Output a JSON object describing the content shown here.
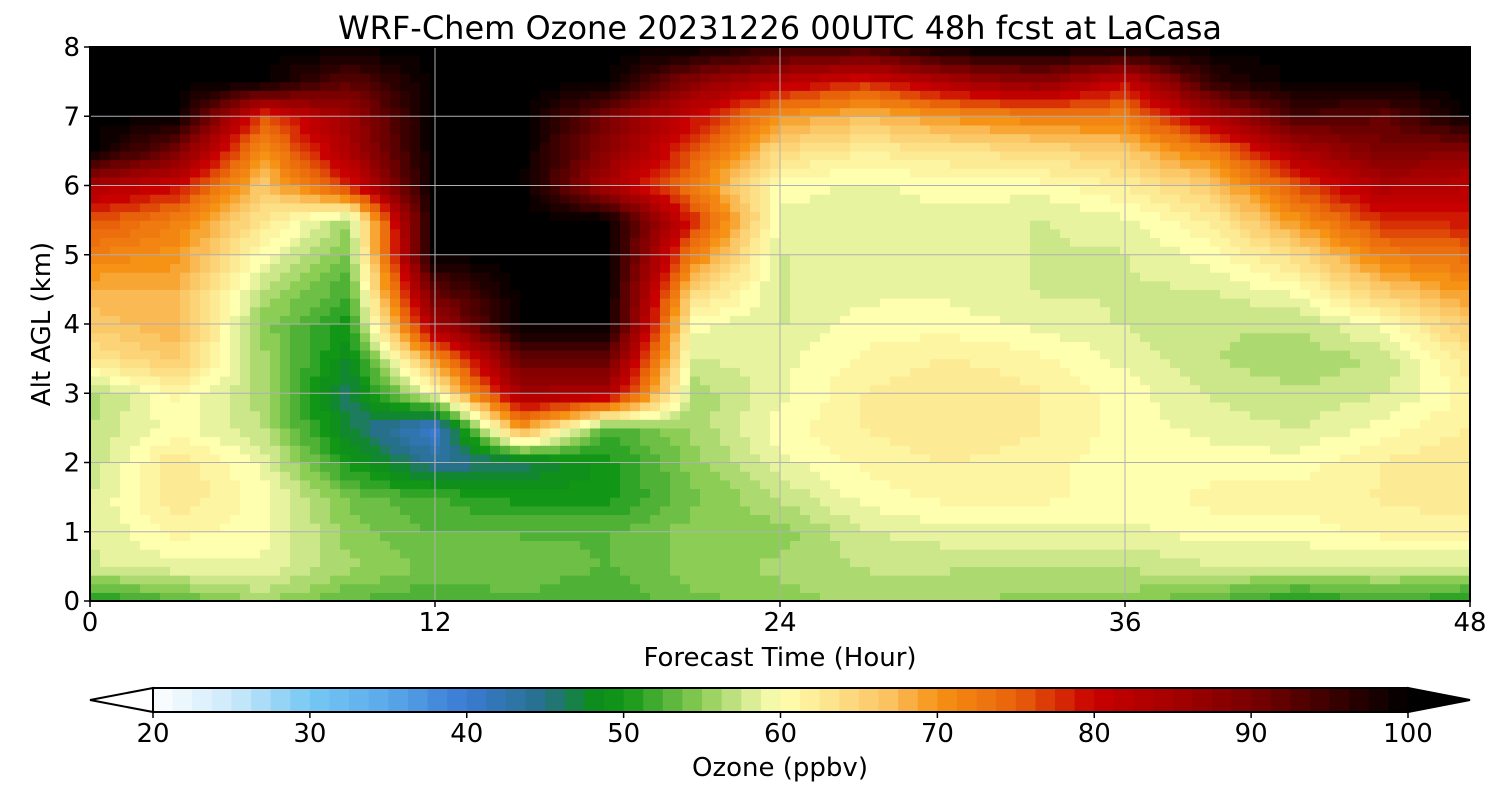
{
  "chart_data": {
    "type": "heatmap",
    "title": "WRF-Chem Ozone  20231226 00UTC 48h fcst at LaCasa",
    "xlabel": "Forecast Time (Hour)",
    "ylabel": "Alt AGL (km)",
    "xlim": [
      0,
      48
    ],
    "ylim": [
      0,
      8
    ],
    "xticks": [
      0,
      12,
      24,
      36,
      48
    ],
    "yticks": [
      0,
      1,
      2,
      3,
      4,
      5,
      6,
      7,
      8
    ],
    "grid": true,
    "x": [
      0,
      3,
      6,
      9,
      12,
      15,
      18,
      21,
      24,
      27,
      30,
      33,
      36,
      39,
      42,
      45,
      48
    ],
    "y": [
      0,
      0.5,
      1,
      1.5,
      2,
      2.5,
      3,
      3.5,
      4,
      4.5,
      5,
      5.5,
      6,
      6.5,
      7,
      7.5,
      8
    ],
    "values": [
      [
        50,
        53,
        56,
        53,
        52,
        53,
        52,
        54,
        55,
        56,
        56,
        55,
        55,
        53,
        50,
        52,
        50
      ],
      [
        58,
        59,
        59,
        56,
        54,
        54,
        53,
        55,
        56,
        57,
        57,
        57,
        57,
        58,
        58,
        58,
        58
      ],
      [
        58,
        61,
        60,
        55,
        53,
        53,
        53,
        55,
        55,
        58,
        59,
        59,
        59,
        60,
        60,
        61,
        61
      ],
      [
        58,
        63,
        60,
        54,
        52,
        50,
        50,
        54,
        57,
        60,
        61,
        61,
        60,
        61,
        61,
        62,
        63
      ],
      [
        57,
        63,
        59,
        50,
        44,
        46,
        50,
        55,
        59,
        61,
        62,
        61,
        60,
        60,
        60,
        62,
        63
      ],
      [
        57,
        60,
        57,
        47,
        40,
        70,
        52,
        56,
        60,
        62,
        63,
        62,
        60,
        59,
        58,
        60,
        62
      ],
      [
        56,
        61,
        56,
        46,
        60,
        85,
        84,
        56,
        59,
        62,
        63,
        62,
        60,
        58,
        57,
        58,
        61
      ],
      [
        63,
        66,
        56,
        48,
        70,
        92,
        92,
        58,
        59,
        61,
        62,
        61,
        59,
        57,
        56,
        57,
        63
      ],
      [
        66,
        68,
        55,
        50,
        85,
        100,
        100,
        60,
        58,
        60,
        60,
        59,
        58,
        57,
        57,
        60,
        66
      ],
      [
        68,
        68,
        57,
        52,
        92,
        100,
        100,
        65,
        58,
        59,
        59,
        58,
        58,
        58,
        60,
        66,
        70
      ],
      [
        72,
        70,
        60,
        54,
        100,
        100,
        100,
        72,
        58,
        59,
        59,
        58,
        58,
        60,
        64,
        72,
        74
      ],
      [
        76,
        72,
        63,
        56,
        100,
        100,
        100,
        78,
        59,
        59,
        59,
        58,
        59,
        62,
        70,
        78,
        79
      ],
      [
        84,
        80,
        66,
        78,
        100,
        100,
        84,
        72,
        60,
        59,
        60,
        60,
        62,
        66,
        76,
        84,
        82
      ],
      [
        100,
        90,
        70,
        84,
        100,
        100,
        88,
        76,
        64,
        62,
        63,
        64,
        66,
        72,
        84,
        90,
        88
      ],
      [
        100,
        100,
        76,
        86,
        100,
        100,
        90,
        80,
        70,
        67,
        70,
        72,
        72,
        84,
        94,
        92,
        100
      ],
      [
        100,
        100,
        100,
        92,
        100,
        100,
        100,
        88,
        82,
        78,
        84,
        88,
        80,
        96,
        100,
        100,
        100
      ],
      [
        100,
        100,
        100,
        100,
        100,
        100,
        100,
        100,
        96,
        95,
        100,
        100,
        100,
        100,
        100,
        100,
        100
      ]
    ],
    "colorbar": {
      "label": "Ozone  (ppbv)",
      "min": 20,
      "max": 100,
      "ticks": [
        20,
        30,
        40,
        50,
        60,
        70,
        80,
        90,
        100
      ],
      "extend": "both",
      "stops": [
        {
          "v": 20,
          "c": "#ffffff"
        },
        {
          "v": 25,
          "c": "#cce9fa"
        },
        {
          "v": 30,
          "c": "#75c8f4"
        },
        {
          "v": 35,
          "c": "#5aa8ea"
        },
        {
          "v": 40,
          "c": "#3a7ad2"
        },
        {
          "v": 45,
          "c": "#26708a"
        },
        {
          "v": 48,
          "c": "#0d8c1e"
        },
        {
          "v": 50,
          "c": "#119616"
        },
        {
          "v": 55,
          "c": "#8ccd55"
        },
        {
          "v": 58,
          "c": "#d9ec95"
        },
        {
          "v": 60,
          "c": "#ffffb0"
        },
        {
          "v": 63,
          "c": "#fde68e"
        },
        {
          "v": 67,
          "c": "#fbc15f"
        },
        {
          "v": 70,
          "c": "#f69214"
        },
        {
          "v": 75,
          "c": "#e8620a"
        },
        {
          "v": 80,
          "c": "#c80000"
        },
        {
          "v": 85,
          "c": "#a40000"
        },
        {
          "v": 90,
          "c": "#7a0000"
        },
        {
          "v": 95,
          "c": "#3c0000"
        },
        {
          "v": 100,
          "c": "#000000"
        }
      ]
    }
  }
}
